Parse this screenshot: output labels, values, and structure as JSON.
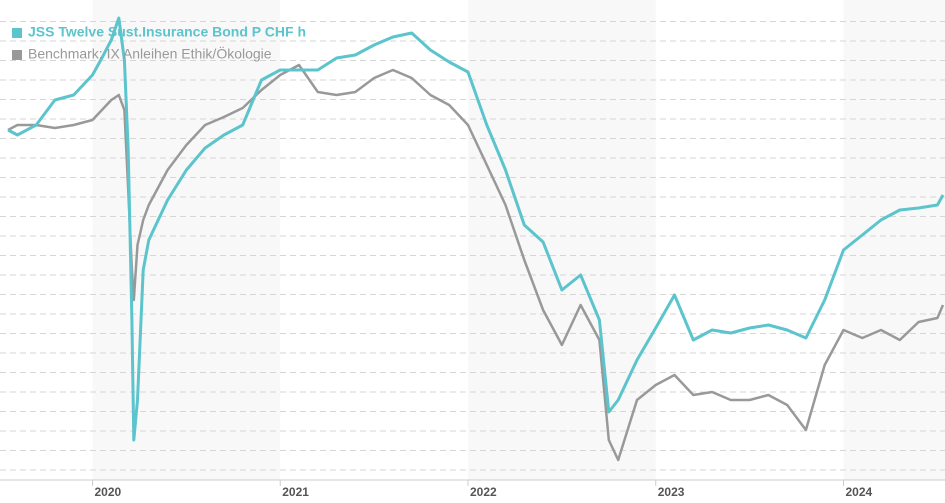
{
  "chart_data": {
    "type": "line",
    "x": [
      2019.55,
      2019.6,
      2019.7,
      2019.8,
      2019.9,
      2020.0,
      2020.05,
      2020.1,
      2020.14,
      2020.17,
      2020.19,
      2020.21,
      2020.22,
      2020.24,
      2020.27,
      2020.3,
      2020.4,
      2020.5,
      2020.6,
      2020.7,
      2020.8,
      2020.9,
      2021.0,
      2021.1,
      2021.2,
      2021.3,
      2021.4,
      2021.5,
      2021.6,
      2021.7,
      2021.8,
      2021.9,
      2022.0,
      2022.1,
      2022.2,
      2022.3,
      2022.4,
      2022.5,
      2022.6,
      2022.7,
      2022.75,
      2022.8,
      2022.9,
      2023.0,
      2023.1,
      2023.2,
      2023.3,
      2023.4,
      2023.5,
      2023.6,
      2023.7,
      2023.8,
      2023.9,
      2024.0,
      2024.1,
      2024.2,
      2024.3,
      2024.4,
      2024.5,
      2024.53
    ],
    "series": [
      {
        "name": "JSS Twelve Sust.Insurance Bond P CHF h",
        "color": "#5bc4cc",
        "values": [
          350,
          345,
          355,
          380,
          385,
          405,
          422,
          440,
          462,
          420,
          330,
          160,
          40,
          80,
          210,
          240,
          280,
          310,
          332,
          345,
          355,
          400,
          410,
          410,
          410,
          422,
          425,
          435,
          443,
          447,
          430,
          418,
          408,
          355,
          310,
          255,
          238,
          190,
          205,
          160,
          68,
          80,
          120,
          152,
          185,
          140,
          150,
          147,
          152,
          155,
          150,
          142,
          180,
          230,
          245,
          260,
          270,
          272,
          275,
          285
        ]
      },
      {
        "name": "Benchmark: IX Anleihen Ethik/Ökologie",
        "color": "#999999",
        "values": [
          350,
          355,
          355,
          352,
          355,
          360,
          370,
          380,
          385,
          370,
          290,
          210,
          180,
          235,
          260,
          275,
          310,
          335,
          355,
          363,
          372,
          390,
          405,
          415,
          388,
          385,
          388,
          402,
          410,
          402,
          385,
          375,
          355,
          315,
          275,
          220,
          170,
          135,
          175,
          140,
          40,
          20,
          80,
          95,
          105,
          85,
          88,
          80,
          80,
          85,
          75,
          50,
          115,
          150,
          142,
          150,
          140,
          158,
          162,
          175
        ]
      }
    ],
    "xlim": [
      2019.55,
      2024.53
    ],
    "xticks": [
      2020,
      2021,
      2022,
      2023,
      2024
    ],
    "ylim": [
      0,
      480
    ],
    "yticks": [
      10,
      29.5,
      49,
      68.5,
      88,
      107.5,
      127,
      146.5,
      166,
      185.5,
      205,
      224.5,
      244,
      263.5,
      283,
      302.5,
      322,
      341.5,
      361,
      380.5,
      400,
      419.5,
      439,
      458.5
    ],
    "grid": true,
    "legend": "top-left"
  }
}
